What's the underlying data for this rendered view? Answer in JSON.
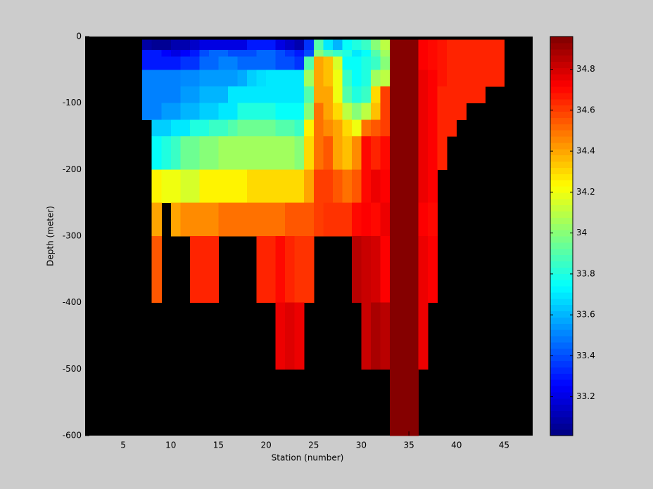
{
  "chart_data": {
    "type": "heatmap",
    "xlabel": "Station (number)",
    "ylabel": "Depth (meter)",
    "xlim": [
      1,
      48
    ],
    "ylim": [
      -600,
      0
    ],
    "xticks": [
      5,
      10,
      15,
      20,
      25,
      30,
      35,
      40,
      45
    ],
    "yticks": [
      0,
      -100,
      -200,
      -300,
      -400,
      -500,
      -600
    ],
    "clim": [
      33.01,
      34.96
    ],
    "cticks": [
      33.2,
      33.4,
      33.6,
      33.8,
      34,
      34.2,
      34.4,
      34.6,
      34.8
    ],
    "colormap": "jet",
    "background": "#000000",
    "x_edges": [
      7,
      8,
      9,
      10,
      11,
      12,
      13,
      14,
      15,
      16,
      17,
      18,
      19,
      20,
      21,
      22,
      23,
      24,
      25,
      26,
      27,
      28,
      29,
      30,
      31,
      32,
      33,
      34,
      35,
      36,
      37,
      38,
      39,
      40,
      41,
      42,
      43,
      44,
      45
    ],
    "y_edges": [
      -5,
      -20,
      -30,
      -50,
      -75,
      -100,
      -125,
      -150,
      -200,
      -250,
      -300,
      -400,
      -500,
      -600
    ],
    "values": [
      [
        33.08,
        33.05,
        33.05,
        33.1,
        33.1,
        33.15,
        33.2,
        33.2,
        33.2,
        33.2,
        33.2,
        33.3,
        33.3,
        33.3,
        33.2,
        33.15,
        33.1,
        33.35,
        33.9,
        33.7,
        33.6,
        33.75,
        33.8,
        33.85,
        34.0,
        34.1,
        34.95,
        34.95,
        34.95,
        34.72,
        34.7,
        34.68,
        34.65,
        34.65,
        34.65,
        34.65,
        34.65,
        34.65
      ],
      [
        33.3,
        33.3,
        33.25,
        33.2,
        33.25,
        33.3,
        33.4,
        33.45,
        33.45,
        33.4,
        33.4,
        33.4,
        33.45,
        33.45,
        33.4,
        33.35,
        33.3,
        33.4,
        34.0,
        33.9,
        33.85,
        33.8,
        33.7,
        33.75,
        33.9,
        34.05,
        34.95,
        34.95,
        34.95,
        34.72,
        34.7,
        34.68,
        34.65,
        34.65,
        34.65,
        34.65,
        34.65,
        34.65
      ],
      [
        33.3,
        33.3,
        33.3,
        33.3,
        33.35,
        33.35,
        33.45,
        33.45,
        33.5,
        33.5,
        33.45,
        33.45,
        33.45,
        33.45,
        33.4,
        33.4,
        33.35,
        33.9,
        34.4,
        34.35,
        34.15,
        33.75,
        33.75,
        33.8,
        33.85,
        34.0,
        34.95,
        34.95,
        34.95,
        34.72,
        34.7,
        34.68,
        34.65,
        34.65,
        34.65,
        34.65,
        34.65,
        34.65
      ],
      [
        33.5,
        33.5,
        33.5,
        33.5,
        33.52,
        33.52,
        33.55,
        33.55,
        33.55,
        33.55,
        33.58,
        33.65,
        33.68,
        33.7,
        33.7,
        33.7,
        33.7,
        34.05,
        34.4,
        34.35,
        34.2,
        33.85,
        33.75,
        33.8,
        34.05,
        34.1,
        34.95,
        34.95,
        34.95,
        34.75,
        34.72,
        34.68,
        34.65,
        34.65,
        34.65,
        34.65,
        34.65,
        34.65
      ],
      [
        33.5,
        33.5,
        33.5,
        33.5,
        33.55,
        33.55,
        33.6,
        33.6,
        33.6,
        33.7,
        33.7,
        33.7,
        33.7,
        33.7,
        33.7,
        33.7,
        33.7,
        33.9,
        34.4,
        34.4,
        34.2,
        33.9,
        33.8,
        33.85,
        34.3,
        34.6,
        34.95,
        34.95,
        34.95,
        34.75,
        34.72,
        34.65,
        34.65,
        34.65,
        34.65,
        34.65,
        null,
        null
      ],
      [
        33.5,
        33.5,
        33.55,
        33.55,
        33.6,
        33.6,
        33.65,
        33.65,
        33.7,
        33.7,
        33.8,
        33.8,
        33.8,
        33.8,
        33.75,
        33.75,
        33.75,
        34.0,
        34.5,
        34.4,
        34.3,
        34.1,
        34.0,
        34.1,
        34.35,
        34.6,
        34.95,
        34.95,
        34.95,
        34.75,
        34.72,
        34.65,
        34.65,
        34.65,
        null,
        null,
        null,
        null
      ],
      [
        null,
        33.65,
        33.65,
        33.7,
        33.7,
        33.8,
        33.8,
        33.85,
        33.85,
        33.9,
        33.95,
        33.95,
        33.95,
        33.95,
        33.9,
        33.9,
        33.85,
        34.25,
        34.5,
        34.45,
        34.4,
        34.3,
        34.2,
        34.5,
        34.55,
        34.6,
        34.95,
        34.95,
        34.95,
        34.75,
        34.72,
        34.65,
        34.65,
        null,
        null,
        null,
        null,
        null
      ],
      [
        null,
        33.75,
        33.8,
        33.85,
        33.95,
        33.95,
        34.0,
        34.0,
        34.05,
        34.05,
        34.05,
        34.05,
        34.05,
        34.05,
        34.05,
        34.05,
        34.0,
        34.3,
        34.5,
        34.55,
        34.4,
        34.35,
        34.45,
        34.7,
        34.65,
        34.7,
        34.95,
        34.95,
        34.95,
        34.75,
        34.72,
        34.65,
        null,
        null,
        null,
        null,
        null,
        null
      ],
      [
        null,
        34.25,
        34.2,
        34.2,
        34.15,
        34.15,
        34.25,
        34.25,
        34.25,
        34.25,
        34.25,
        34.3,
        34.3,
        34.3,
        34.3,
        34.3,
        34.3,
        34.4,
        34.6,
        34.6,
        34.55,
        34.5,
        34.55,
        34.7,
        34.75,
        34.72,
        34.95,
        34.95,
        34.95,
        34.75,
        34.72,
        null,
        null,
        null,
        null,
        null,
        null,
        null
      ],
      [
        null,
        34.4,
        null,
        34.4,
        34.45,
        34.45,
        34.45,
        34.45,
        34.5,
        34.5,
        34.5,
        34.5,
        34.5,
        34.5,
        34.5,
        34.55,
        34.55,
        34.55,
        34.6,
        34.62,
        34.62,
        34.62,
        34.7,
        34.72,
        34.7,
        34.75,
        34.95,
        34.95,
        34.95,
        34.72,
        34.7,
        null,
        null,
        null,
        null,
        null,
        null,
        null
      ],
      [
        null,
        34.55,
        null,
        null,
        null,
        34.65,
        34.65,
        34.65,
        null,
        null,
        null,
        null,
        34.65,
        34.65,
        34.7,
        34.65,
        34.62,
        34.62,
        null,
        null,
        null,
        null,
        34.85,
        34.82,
        34.8,
        34.72,
        34.95,
        34.95,
        34.95,
        34.75,
        34.72,
        null,
        null,
        null,
        null,
        null,
        null,
        null
      ],
      [
        null,
        null,
        null,
        null,
        null,
        null,
        null,
        null,
        null,
        null,
        null,
        null,
        null,
        null,
        34.75,
        34.78,
        34.75,
        null,
        null,
        null,
        null,
        null,
        null,
        34.82,
        34.88,
        34.85,
        34.95,
        34.95,
        34.95,
        34.75,
        null,
        null,
        null,
        null,
        null,
        null,
        null,
        null
      ],
      [
        null,
        null,
        null,
        null,
        null,
        null,
        null,
        null,
        null,
        null,
        null,
        null,
        null,
        null,
        null,
        null,
        null,
        null,
        null,
        null,
        null,
        null,
        null,
        null,
        null,
        null,
        34.95,
        34.95,
        34.95,
        null,
        null,
        null,
        null,
        null,
        null,
        null,
        null,
        null
      ]
    ]
  }
}
